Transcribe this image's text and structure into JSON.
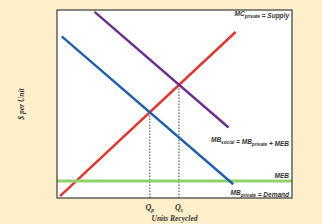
{
  "chart_data": {
    "type": "line",
    "x_label": "Units Recycled",
    "y_label": "$ per Unit",
    "xlim": [
      0,
      10
    ],
    "ylim": [
      0,
      10
    ],
    "grid": false,
    "series": [
      {
        "name": "MCprivate = Supply",
        "color": "#e8322a",
        "x": [
          0.13,
          7.6
        ],
        "values": [
          0.1,
          8.83
        ]
      },
      {
        "name": "MBsocial = MBprivate + MEB",
        "color": "#6a2c91",
        "x": [
          1.6,
          7.3
        ],
        "values": [
          9.9,
          3.75
        ]
      },
      {
        "name": "MEB",
        "color": "#8fd16a",
        "x": [
          0,
          10
        ],
        "values": [
          0.9,
          0.9
        ]
      },
      {
        "name": "MBprivate = Demand",
        "color": "#1f5fb0",
        "x": [
          0.2,
          7.5
        ],
        "values": [
          8.6,
          0.73
        ]
      }
    ],
    "annotations": [
      {
        "label": "Qp",
        "x": 3.95,
        "y": 4.57
      },
      {
        "label": "Qs",
        "x": 5.19,
        "y": 6.02
      }
    ]
  }
}
